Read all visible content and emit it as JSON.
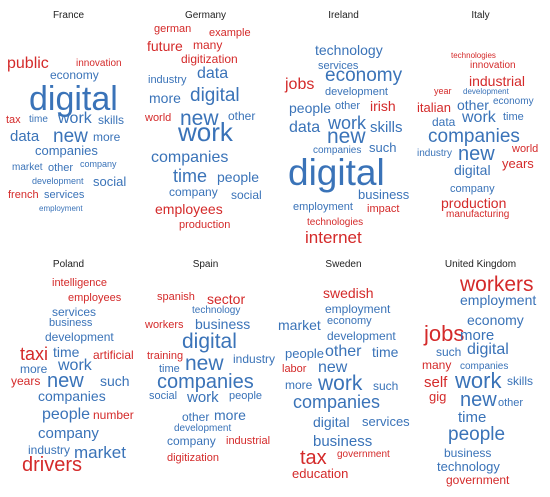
{
  "colors": {
    "blue": "#3a73b8",
    "red": "#d42a2a"
  },
  "panels": [
    {
      "title": "France",
      "words": [
        {
          "t": "public",
          "c": "red"
        },
        {
          "t": "innovation",
          "c": "red"
        },
        {
          "t": "economy",
          "c": "blue"
        },
        {
          "t": "digital",
          "c": "blue"
        },
        {
          "t": "tax",
          "c": "red"
        },
        {
          "t": "time",
          "c": "blue"
        },
        {
          "t": "work",
          "c": "blue"
        },
        {
          "t": "skills",
          "c": "blue"
        },
        {
          "t": "data",
          "c": "blue"
        },
        {
          "t": "new",
          "c": "blue"
        },
        {
          "t": "more",
          "c": "blue"
        },
        {
          "t": "companies",
          "c": "blue"
        },
        {
          "t": "market",
          "c": "blue"
        },
        {
          "t": "other",
          "c": "blue"
        },
        {
          "t": "company",
          "c": "blue"
        },
        {
          "t": "development",
          "c": "blue"
        },
        {
          "t": "social",
          "c": "blue"
        },
        {
          "t": "french",
          "c": "red"
        },
        {
          "t": "services",
          "c": "blue"
        },
        {
          "t": "employment",
          "c": "blue"
        }
      ]
    },
    {
      "title": "Germany",
      "words": [
        {
          "t": "german",
          "c": "red"
        },
        {
          "t": "example",
          "c": "red"
        },
        {
          "t": "future",
          "c": "red"
        },
        {
          "t": "many",
          "c": "red"
        },
        {
          "t": "digitization",
          "c": "red"
        },
        {
          "t": "data",
          "c": "blue"
        },
        {
          "t": "industry",
          "c": "blue"
        },
        {
          "t": "more",
          "c": "blue"
        },
        {
          "t": "digital",
          "c": "blue"
        },
        {
          "t": "world",
          "c": "red"
        },
        {
          "t": "new",
          "c": "blue"
        },
        {
          "t": "other",
          "c": "blue"
        },
        {
          "t": "work",
          "c": "blue"
        },
        {
          "t": "companies",
          "c": "blue"
        },
        {
          "t": "time",
          "c": "blue"
        },
        {
          "t": "people",
          "c": "blue"
        },
        {
          "t": "company",
          "c": "blue"
        },
        {
          "t": "social",
          "c": "blue"
        },
        {
          "t": "employees",
          "c": "red"
        },
        {
          "t": "production",
          "c": "red"
        }
      ]
    },
    {
      "title": "Ireland",
      "words": [
        {
          "t": "technology",
          "c": "blue"
        },
        {
          "t": "services",
          "c": "blue"
        },
        {
          "t": "jobs",
          "c": "red"
        },
        {
          "t": "economy",
          "c": "blue"
        },
        {
          "t": "development",
          "c": "blue"
        },
        {
          "t": "people",
          "c": "blue"
        },
        {
          "t": "other",
          "c": "blue"
        },
        {
          "t": "irish",
          "c": "red"
        },
        {
          "t": "work",
          "c": "blue"
        },
        {
          "t": "data",
          "c": "blue"
        },
        {
          "t": "skills",
          "c": "blue"
        },
        {
          "t": "new",
          "c": "blue"
        },
        {
          "t": "companies",
          "c": "blue"
        },
        {
          "t": "such",
          "c": "blue"
        },
        {
          "t": "digital",
          "c": "blue"
        },
        {
          "t": "business",
          "c": "blue"
        },
        {
          "t": "employment",
          "c": "blue"
        },
        {
          "t": "impact",
          "c": "red"
        },
        {
          "t": "technologies",
          "c": "red"
        },
        {
          "t": "internet",
          "c": "red"
        }
      ]
    },
    {
      "title": "Italy",
      "words": [
        {
          "t": "technologies",
          "c": "red"
        },
        {
          "t": "innovation",
          "c": "red"
        },
        {
          "t": "industrial",
          "c": "red"
        },
        {
          "t": "year",
          "c": "red"
        },
        {
          "t": "development",
          "c": "blue"
        },
        {
          "t": "italian",
          "c": "red"
        },
        {
          "t": "other",
          "c": "blue"
        },
        {
          "t": "economy",
          "c": "blue"
        },
        {
          "t": "data",
          "c": "blue"
        },
        {
          "t": "work",
          "c": "blue"
        },
        {
          "t": "time",
          "c": "blue"
        },
        {
          "t": "companies",
          "c": "blue"
        },
        {
          "t": "industry",
          "c": "blue"
        },
        {
          "t": "new",
          "c": "blue"
        },
        {
          "t": "world",
          "c": "red"
        },
        {
          "t": "years",
          "c": "red"
        },
        {
          "t": "digital",
          "c": "blue"
        },
        {
          "t": "company",
          "c": "blue"
        },
        {
          "t": "production",
          "c": "red"
        },
        {
          "t": "manufacturing",
          "c": "red"
        }
      ]
    },
    {
      "title": "Poland",
      "words": [
        {
          "t": "intelligence",
          "c": "red"
        },
        {
          "t": "employees",
          "c": "red"
        },
        {
          "t": "services",
          "c": "blue"
        },
        {
          "t": "business",
          "c": "blue"
        },
        {
          "t": "development",
          "c": "blue"
        },
        {
          "t": "taxi",
          "c": "red"
        },
        {
          "t": "time",
          "c": "blue"
        },
        {
          "t": "artificial",
          "c": "red"
        },
        {
          "t": "more",
          "c": "blue"
        },
        {
          "t": "work",
          "c": "blue"
        },
        {
          "t": "years",
          "c": "red"
        },
        {
          "t": "new",
          "c": "blue"
        },
        {
          "t": "such",
          "c": "blue"
        },
        {
          "t": "companies",
          "c": "blue"
        },
        {
          "t": "people",
          "c": "blue"
        },
        {
          "t": "number",
          "c": "red"
        },
        {
          "t": "company",
          "c": "blue"
        },
        {
          "t": "industry",
          "c": "blue"
        },
        {
          "t": "market",
          "c": "blue"
        },
        {
          "t": "drivers",
          "c": "red"
        }
      ]
    },
    {
      "title": "Spain",
      "words": [
        {
          "t": "spanish",
          "c": "red"
        },
        {
          "t": "sector",
          "c": "red"
        },
        {
          "t": "technology",
          "c": "blue"
        },
        {
          "t": "workers",
          "c": "red"
        },
        {
          "t": "business",
          "c": "blue"
        },
        {
          "t": "digital",
          "c": "blue"
        },
        {
          "t": "training",
          "c": "red"
        },
        {
          "t": "industry",
          "c": "blue"
        },
        {
          "t": "new",
          "c": "blue"
        },
        {
          "t": "time",
          "c": "blue"
        },
        {
          "t": "companies",
          "c": "blue"
        },
        {
          "t": "social",
          "c": "blue"
        },
        {
          "t": "work",
          "c": "blue"
        },
        {
          "t": "people",
          "c": "blue"
        },
        {
          "t": "other",
          "c": "blue"
        },
        {
          "t": "more",
          "c": "blue"
        },
        {
          "t": "development",
          "c": "blue"
        },
        {
          "t": "company",
          "c": "blue"
        },
        {
          "t": "industrial",
          "c": "red"
        },
        {
          "t": "digitization",
          "c": "red"
        }
      ]
    },
    {
      "title": "Sweden",
      "words": [
        {
          "t": "swedish",
          "c": "red"
        },
        {
          "t": "employment",
          "c": "blue"
        },
        {
          "t": "market",
          "c": "blue"
        },
        {
          "t": "economy",
          "c": "blue"
        },
        {
          "t": "development",
          "c": "blue"
        },
        {
          "t": "people",
          "c": "blue"
        },
        {
          "t": "other",
          "c": "blue"
        },
        {
          "t": "time",
          "c": "blue"
        },
        {
          "t": "labor",
          "c": "red"
        },
        {
          "t": "new",
          "c": "blue"
        },
        {
          "t": "more",
          "c": "blue"
        },
        {
          "t": "work",
          "c": "blue"
        },
        {
          "t": "such",
          "c": "blue"
        },
        {
          "t": "companies",
          "c": "blue"
        },
        {
          "t": "digital",
          "c": "blue"
        },
        {
          "t": "services",
          "c": "blue"
        },
        {
          "t": "business",
          "c": "blue"
        },
        {
          "t": "tax",
          "c": "red"
        },
        {
          "t": "government",
          "c": "red"
        },
        {
          "t": "education",
          "c": "red"
        }
      ]
    },
    {
      "title": "United Kingdom",
      "words": [
        {
          "t": "workers",
          "c": "red"
        },
        {
          "t": "employment",
          "c": "blue"
        },
        {
          "t": "economy",
          "c": "blue"
        },
        {
          "t": "jobs",
          "c": "red"
        },
        {
          "t": "more",
          "c": "blue"
        },
        {
          "t": "such",
          "c": "blue"
        },
        {
          "t": "digital",
          "c": "blue"
        },
        {
          "t": "many",
          "c": "red"
        },
        {
          "t": "companies",
          "c": "blue"
        },
        {
          "t": "self",
          "c": "red"
        },
        {
          "t": "work",
          "c": "blue"
        },
        {
          "t": "skills",
          "c": "blue"
        },
        {
          "t": "gig",
          "c": "red"
        },
        {
          "t": "new",
          "c": "blue"
        },
        {
          "t": "other",
          "c": "blue"
        },
        {
          "t": "time",
          "c": "blue"
        },
        {
          "t": "people",
          "c": "blue"
        },
        {
          "t": "business",
          "c": "blue"
        },
        {
          "t": "technology",
          "c": "blue"
        },
        {
          "t": "government",
          "c": "red"
        }
      ]
    }
  ]
}
